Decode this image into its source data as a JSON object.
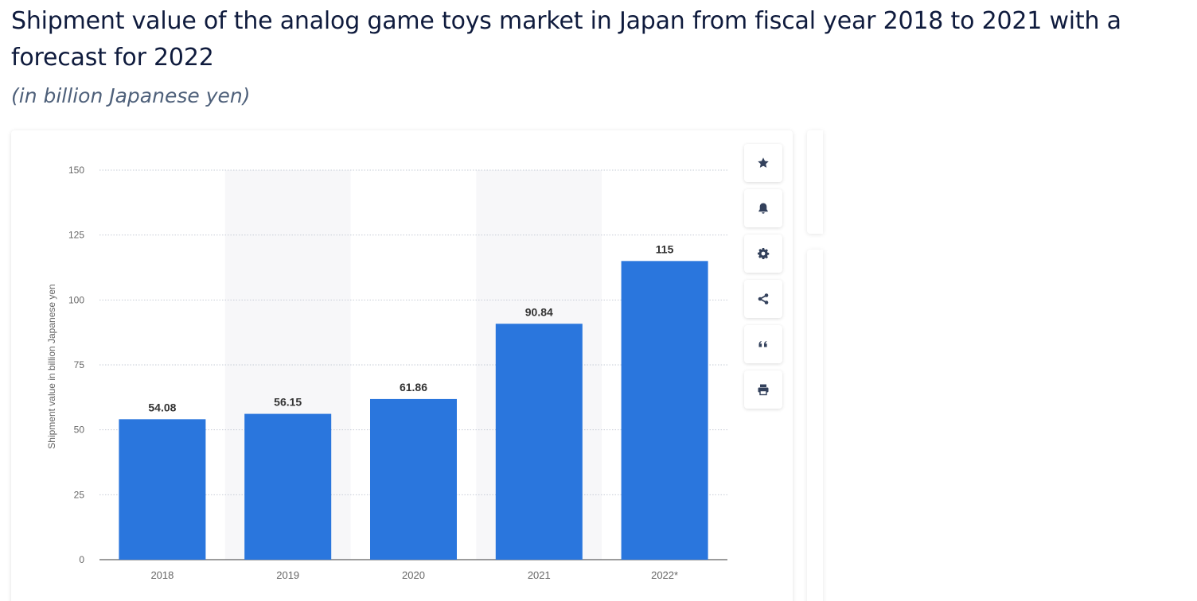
{
  "page": {
    "title": "Shipment value of the analog game toys market in Japan from fiscal year 2018 to 2021 with a forecast for 2022",
    "subtitle": "(in billion Japanese yen)"
  },
  "toolbar": {
    "buttons": [
      {
        "icon": "star-icon",
        "action": "favorite"
      },
      {
        "icon": "bell-icon",
        "action": "notification"
      },
      {
        "icon": "gear-icon",
        "action": "settings"
      },
      {
        "icon": "share-icon",
        "action": "share"
      },
      {
        "icon": "quote-icon",
        "action": "cite"
      },
      {
        "icon": "print-icon",
        "action": "print"
      }
    ]
  },
  "colors": {
    "bar": "#2a76dd",
    "band": "#f7f7f9",
    "grid": "#c6ccd6",
    "axis": "#3a3a3a",
    "tick": "#666666",
    "label": "#333333",
    "icon": "#33415c"
  },
  "chart_data": {
    "type": "bar",
    "categories": [
      "2018",
      "2019",
      "2020",
      "2021",
      "2022*"
    ],
    "values": [
      54.08,
      56.15,
      61.86,
      90.84,
      115
    ],
    "value_labels": [
      "54.08",
      "56.15",
      "61.86",
      "90.84",
      "115"
    ],
    "ylabel": "Shipment value in billion Japanese yen",
    "xlabel": "",
    "ylim": [
      0,
      150
    ],
    "yticks": [
      0,
      25,
      50,
      75,
      100,
      125,
      150
    ],
    "grid": true
  }
}
